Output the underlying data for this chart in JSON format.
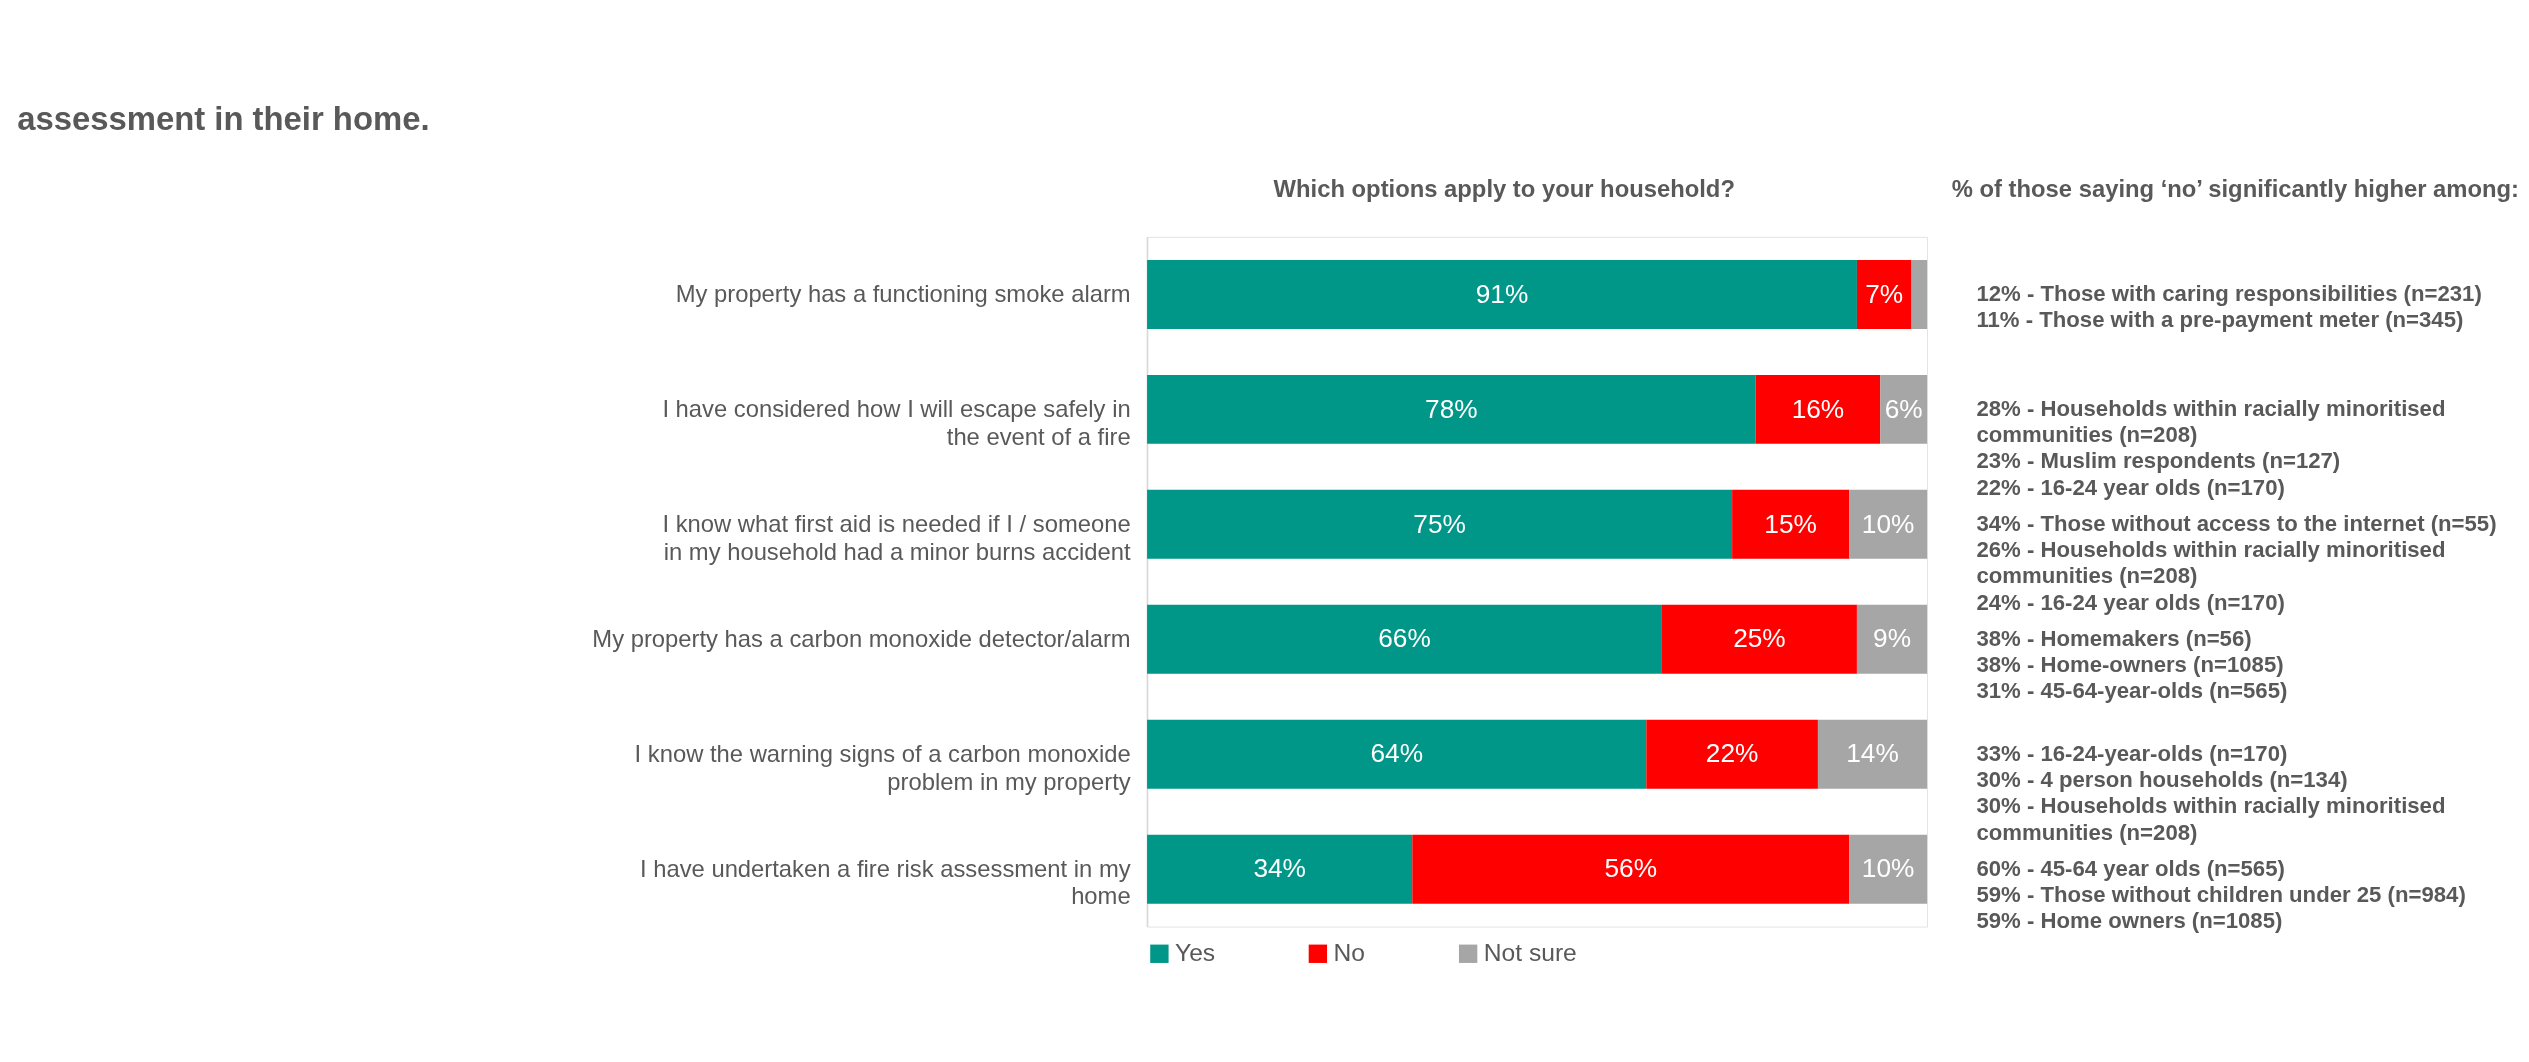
{
  "chart_data": {
    "type": "bar",
    "orientation": "horizontal",
    "stacked": true,
    "title": "assessment in their home.",
    "subtitle": "Which options apply to your household?",
    "categories": [
      "My property has a functioning smoke alarm",
      "I have considered how I will escape safely in the event of a fire",
      "I know what first aid is needed if I / someone in my household had a minor burns accident",
      "My property has a carbon monoxide detector/alarm",
      "I know the warning signs of a carbon monoxide problem in my property",
      "I have undertaken a fire risk assessment in my home"
    ],
    "series": [
      {
        "name": "Yes",
        "color": "#009688",
        "values": [
          91,
          78,
          75,
          66,
          64,
          34
        ],
        "value_labels": [
          "91%",
          "78%",
          "75%",
          "66%",
          "64%",
          "34%"
        ]
      },
      {
        "name": "No",
        "color": "#ff0000",
        "values": [
          7,
          16,
          15,
          25,
          22,
          56
        ],
        "value_labels": [
          "7%",
          "16%",
          "15%",
          "25%",
          "22%",
          "56%"
        ]
      },
      {
        "name": "Not sure",
        "color": "#a6a6a6",
        "values": [
          2,
          6,
          10,
          9,
          14,
          10
        ],
        "value_labels": [
          null,
          "6%",
          "10%",
          "9%",
          "14%",
          "10%"
        ]
      }
    ],
    "legend": "bottom",
    "tick_labels": "y",
    "annotations": [
      "% of those saying ‘no’ significantly higher among:",
      "12% - Those with caring responsibilities (n=231)\n11% -  Those with a pre-payment meter (n=345)",
      "28% - Households within racially minoritised communities (n=208)\n23% - Muslim respondents (n=127)\n22% - 16-24 year olds (n=170)",
      "34% - Those without access to the internet (n=55)\n26% - Households within racially minoritised communities (n=208)\n24% - 16-24 year olds (n=170)",
      "38% - Homemakers (n=56)\n38% - Home-owners (n=1085)\n31% - 45-64-year-olds (n=565)",
      "33% - 16-24-year-olds (n=170)\n30% -  4 person households (n=134)\n30% - Households within racially minoritised communities (n=208)",
      "60% - 45-64 year olds (n=565)\n59% - Those without children under 25 (n=984)\n59% - Home owners (n=1085)"
    ]
  }
}
